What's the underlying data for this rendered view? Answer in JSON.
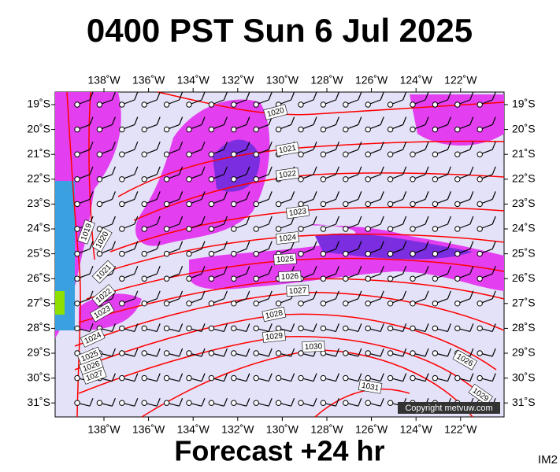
{
  "header": {
    "title": "0400 PST Sun 6 Jul 2025"
  },
  "footer": {
    "subtitle": "Forecast +24 hr",
    "code": "IM2"
  },
  "map": {
    "copyright": "Copyright metvuw.com",
    "lon_labels": [
      "138˚W",
      "136˚W",
      "134˚W",
      "132˚W",
      "130˚W",
      "128˚W",
      "126˚W",
      "124˚W",
      "122˚W"
    ],
    "lat_labels": [
      "19˚S",
      "20˚S",
      "21˚S",
      "22˚S",
      "23˚S",
      "24˚S",
      "25˚S",
      "26˚S",
      "27˚S",
      "28˚S",
      "29˚S",
      "30˚S",
      "31˚S"
    ],
    "isobar_labels": [
      "1020",
      "1021",
      "1022",
      "1023",
      "1024",
      "1025",
      "1026",
      "1027",
      "1028",
      "1029",
      "1030",
      "1031",
      "1026",
      "1029",
      "1019",
      "1020",
      "1021",
      "1022",
      "1023",
      "1024",
      "1025",
      "1026",
      "1027"
    ]
  }
}
